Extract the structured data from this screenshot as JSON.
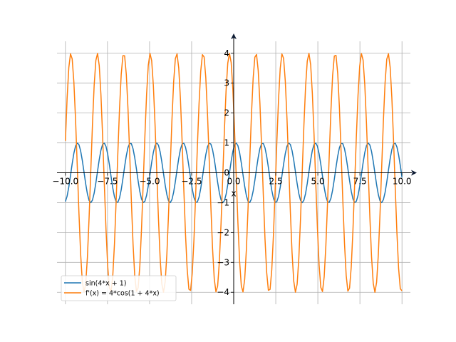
{
  "chart_data": {
    "type": "line",
    "xlabel": "x",
    "ylabel": "",
    "xlim": [
      -10.5,
      10.5
    ],
    "ylim": [
      -4.4,
      4.4
    ],
    "grid": true,
    "legend_position": "lower-left",
    "x_ticks": [
      -10.0,
      -7.5,
      -5.0,
      -2.5,
      0.0,
      2.5,
      5.0,
      7.5,
      10.0
    ],
    "x_tick_labels": [
      "−10.0",
      "−7.5",
      "−5.0",
      "−2.5",
      "0.0",
      "2.5",
      "5.0",
      "7.5",
      "10.0"
    ],
    "y_ticks": [
      -4,
      -3,
      -2,
      -1,
      0,
      1,
      2,
      3,
      4
    ],
    "y_tick_labels": [
      "−4",
      "−3",
      "−2",
      "−1",
      "0",
      "1",
      "2",
      "3",
      "4"
    ],
    "x_range": [
      -10,
      10
    ],
    "x_count": 200,
    "series": [
      {
        "name": "sin(4*x + 1)",
        "color": "#1f77b4",
        "expr": "sin(4*x + 1)"
      },
      {
        "name": "f'(x) = 4*cos(1 + 4*x)",
        "color": "#ff7f0e",
        "expr": "4*cos(1 + 4*x)"
      }
    ]
  }
}
